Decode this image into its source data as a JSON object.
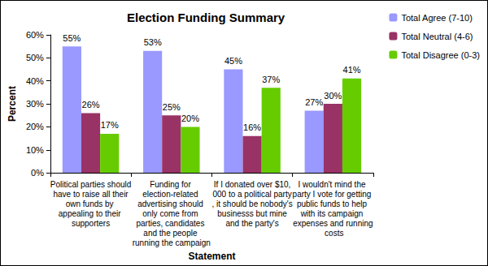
{
  "chart_data": {
    "type": "bar",
    "title": "Election Funding Summary",
    "x_label": "Statement",
    "y_label": "Percent",
    "categories": [
      "Political parties should have to raise all their own funds by appealing to their supporters",
      "Funding for election-related advertising should only come from parties, candidates and the people running the campaign",
      "If I donated over $10,000 to a political party, it should be nobody's businesss but mine and the party's",
      "I wouldn't mind the party I vote for getting public funds to help with its campaign expenses and running costs"
    ],
    "series": [
      {
        "name": "Total Agree (7-10)",
        "color": "#9999ff",
        "values": [
          55,
          53,
          45,
          27
        ],
        "value_labels": [
          "55%",
          "53%",
          "45%",
          "27%"
        ]
      },
      {
        "name": "Total Neutral (4-6)",
        "color": "#993366",
        "values": [
          26,
          25,
          16,
          30
        ],
        "value_labels": [
          "26%",
          "25%",
          "16%",
          "30%"
        ]
      },
      {
        "name": "Total Disagree (0-3)",
        "color": "#66cc00",
        "values": [
          17,
          20,
          37,
          41
        ],
        "value_labels": [
          "17%",
          "20%",
          "37%",
          "41%"
        ]
      }
    ],
    "ylim": [
      0,
      60
    ],
    "yticks": [
      {
        "value": 0,
        "label": "0%"
      },
      {
        "value": 10,
        "label": "10%"
      },
      {
        "value": 20,
        "label": "20%"
      },
      {
        "value": 30,
        "label": "30%"
      },
      {
        "value": 40,
        "label": "40%"
      },
      {
        "value": 50,
        "label": "50%"
      },
      {
        "value": 60,
        "label": "60%"
      }
    ],
    "grid": false,
    "legend": "right",
    "data_labels": true
  }
}
